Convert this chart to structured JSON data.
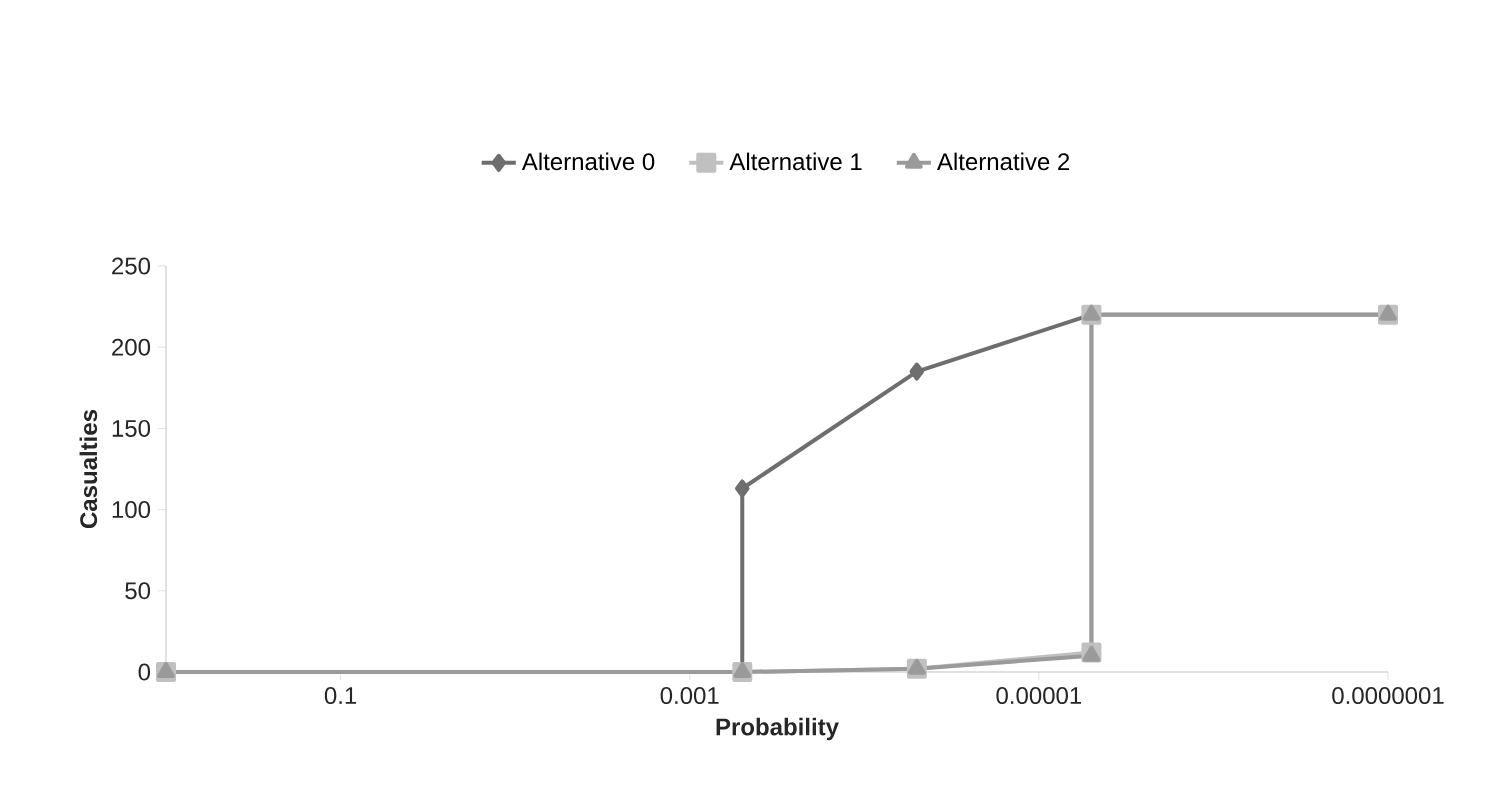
{
  "chart_data": {
    "type": "line",
    "xlabel": "Probability",
    "ylabel": "Casualties",
    "log": "x",
    "xlim": [
      1,
      1e-07
    ],
    "xticks": [
      {
        "value": 0.1,
        "label": "0.1"
      },
      {
        "value": 0.001,
        "label": "0.001"
      },
      {
        "value": 1e-05,
        "label": "0.00001"
      },
      {
        "value": 1e-07,
        "label": "0.0000001"
      }
    ],
    "ylim": [
      0,
      250
    ],
    "yticks": [
      0,
      50,
      100,
      150,
      200,
      250
    ],
    "grid": false,
    "legend": "top",
    "series": [
      {
        "name": "Alternative 0",
        "color": "#6e6e6e",
        "marker": "diamond",
        "x": [
          1,
          0.0005,
          0.0005,
          5e-05,
          5e-06,
          1e-07
        ],
        "values": [
          0,
          0,
          113,
          185,
          220,
          220
        ]
      },
      {
        "name": "Alternative 1",
        "color": "#c0c0c0",
        "marker": "square",
        "x": [
          1,
          0.0005,
          5e-05,
          5e-06,
          5e-06,
          1e-07
        ],
        "values": [
          0,
          0,
          2,
          12,
          220,
          220
        ]
      },
      {
        "name": "Alternative 2",
        "color": "#9a9a9a",
        "marker": "triangle",
        "x": [
          1,
          0.0005,
          5e-05,
          5e-06,
          5e-06,
          1e-07
        ],
        "values": [
          0,
          0,
          2,
          10,
          220,
          220
        ]
      }
    ]
  }
}
